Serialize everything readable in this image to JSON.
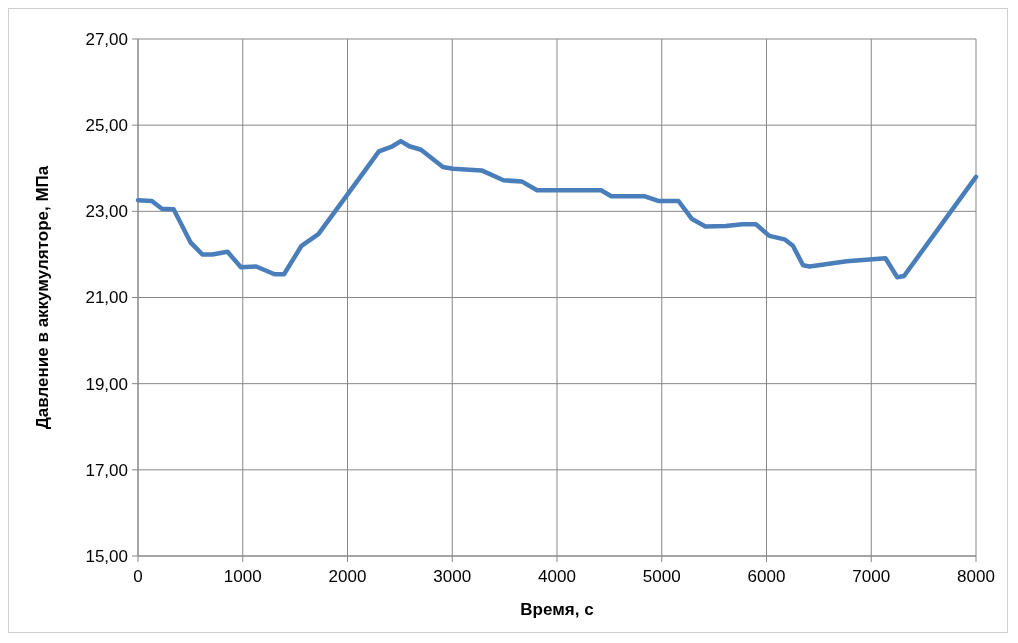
{
  "chart_data": {
    "type": "line",
    "xlabel": "Время, с",
    "ylabel": "Давление в аккумуляторе, МПа",
    "x": [
      0,
      132,
      228,
      340,
      501,
      614,
      710,
      855,
      983,
      1128,
      1304,
      1394,
      1561,
      1722,
      2011,
      2300,
      2429,
      2509,
      2590,
      2702,
      2911,
      3007,
      3280,
      3489,
      3666,
      3810,
      4421,
      4518,
      4839,
      4967,
      5160,
      5289,
      5417,
      5610,
      5771,
      5899,
      6027,
      6172,
      6252,
      6349,
      6413,
      6766,
      7136,
      7248,
      7313,
      8000
    ],
    "series": [
      {
        "color": "#4a7ebb",
        "values": [
          23.26,
          23.24,
          23.06,
          23.05,
          22.28,
          22.0,
          22.0,
          22.06,
          21.7,
          21.72,
          21.54,
          21.54,
          22.2,
          22.47,
          23.43,
          24.39,
          24.51,
          24.63,
          24.51,
          24.43,
          24.03,
          23.99,
          23.95,
          23.72,
          23.69,
          23.49,
          23.49,
          23.35,
          23.35,
          23.24,
          23.24,
          22.82,
          22.65,
          22.66,
          22.7,
          22.7,
          22.43,
          22.35,
          22.2,
          21.75,
          21.72,
          21.84,
          21.91,
          21.47,
          21.5,
          23.8
        ]
      }
    ],
    "xlim": [
      0,
      8000
    ],
    "xticks": [
      0,
      1000,
      2000,
      3000,
      4000,
      5000,
      6000,
      7000,
      8000
    ],
    "ylim": [
      15,
      27
    ],
    "yticks": [
      {
        "value": 15,
        "label": "15,00"
      },
      {
        "value": 17,
        "label": "17,00"
      },
      {
        "value": 19,
        "label": "19,00"
      },
      {
        "value": 21,
        "label": "21,00"
      },
      {
        "value": 23,
        "label": "23,00"
      },
      {
        "value": 25,
        "label": "25,00"
      },
      {
        "value": 27,
        "label": "27,00"
      }
    ],
    "grid": true,
    "line_style": "solid",
    "marker": "none"
  }
}
